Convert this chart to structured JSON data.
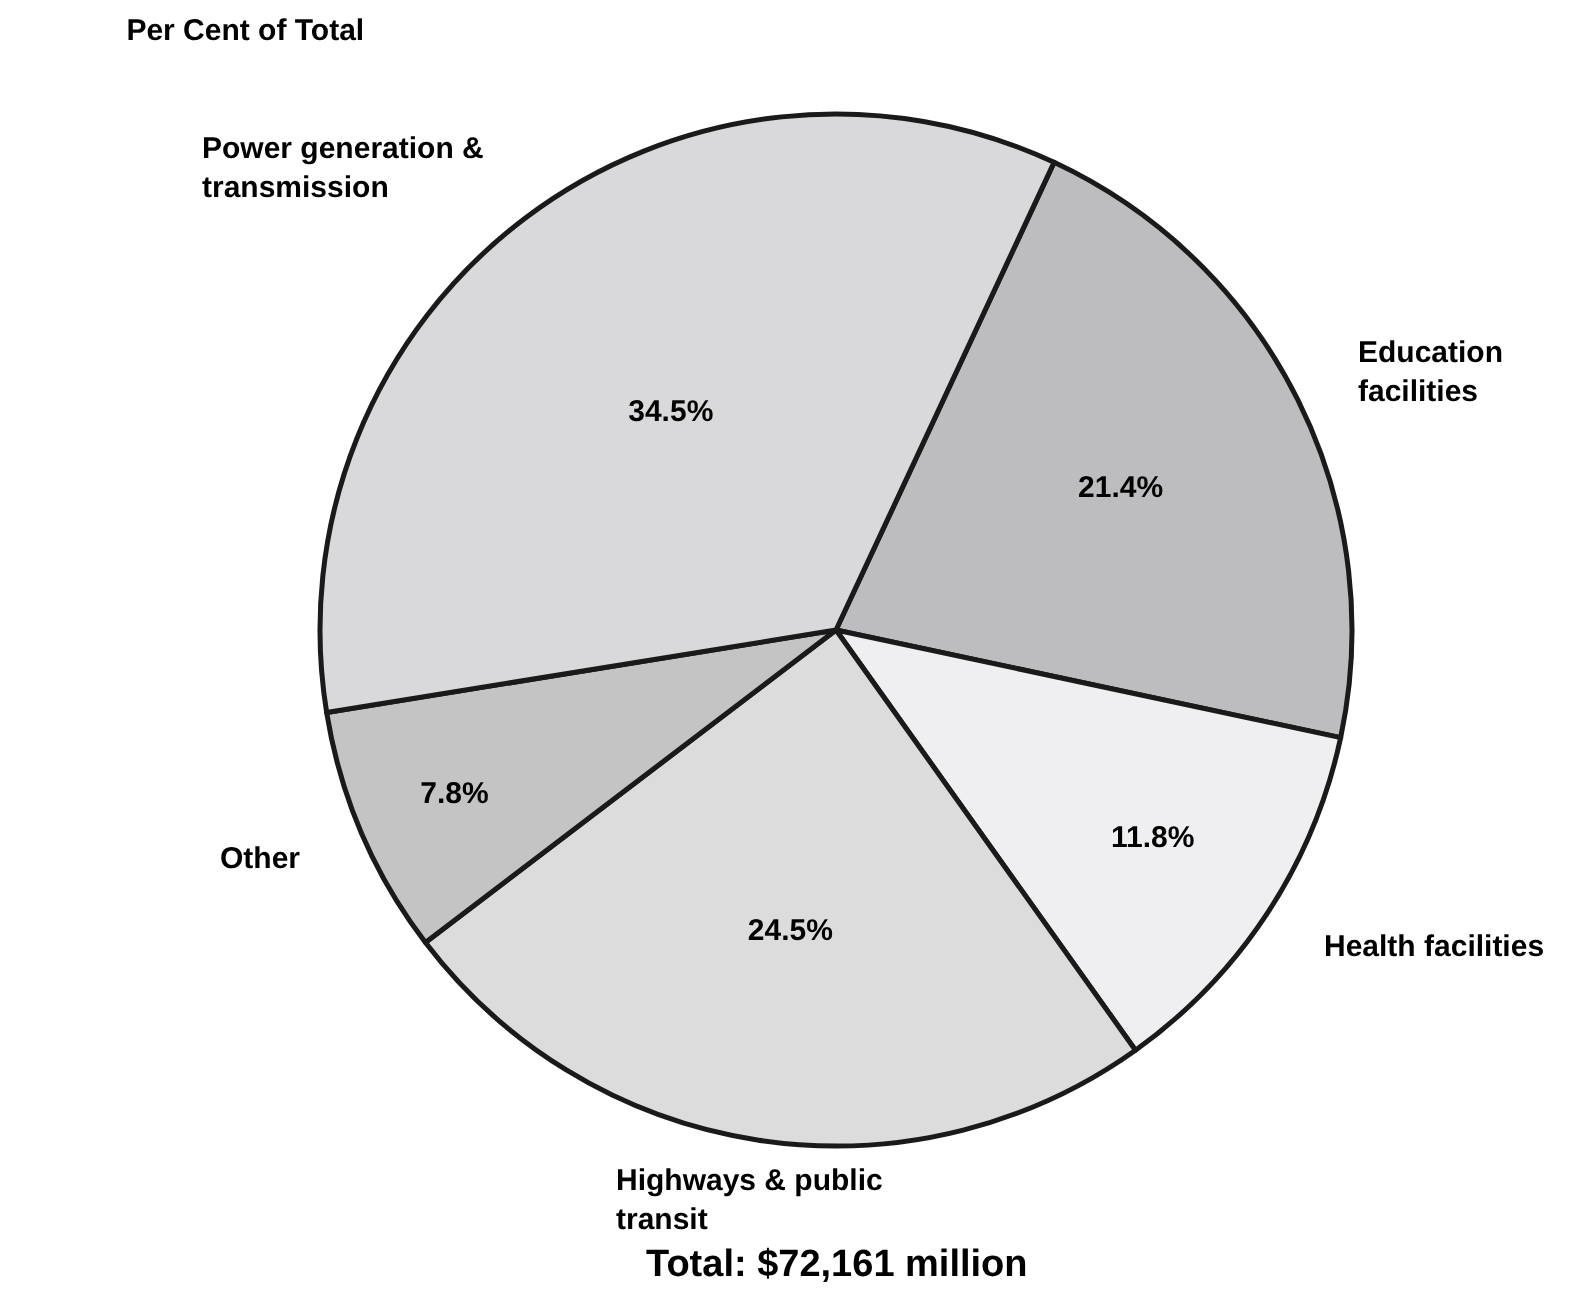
{
  "chart_data": {
    "type": "pie",
    "title": "Per Cent of Total",
    "categories": [
      "Education facilities",
      "Health facilities",
      "Highways & public transit",
      "Other",
      "Power generation & transmission"
    ],
    "values": [
      21.4,
      11.8,
      24.5,
      7.8,
      34.5
    ],
    "value_labels": [
      "21.4%",
      "11.8%",
      "24.5%",
      "7.8%",
      "34.5%"
    ],
    "colors": [
      "#bdbdbf",
      "#efeff1",
      "#dcdcdc",
      "#c4c4c4",
      "#d9d9db"
    ],
    "annotations": [
      "Total: $72,161 million"
    ],
    "legend": false
  }
}
